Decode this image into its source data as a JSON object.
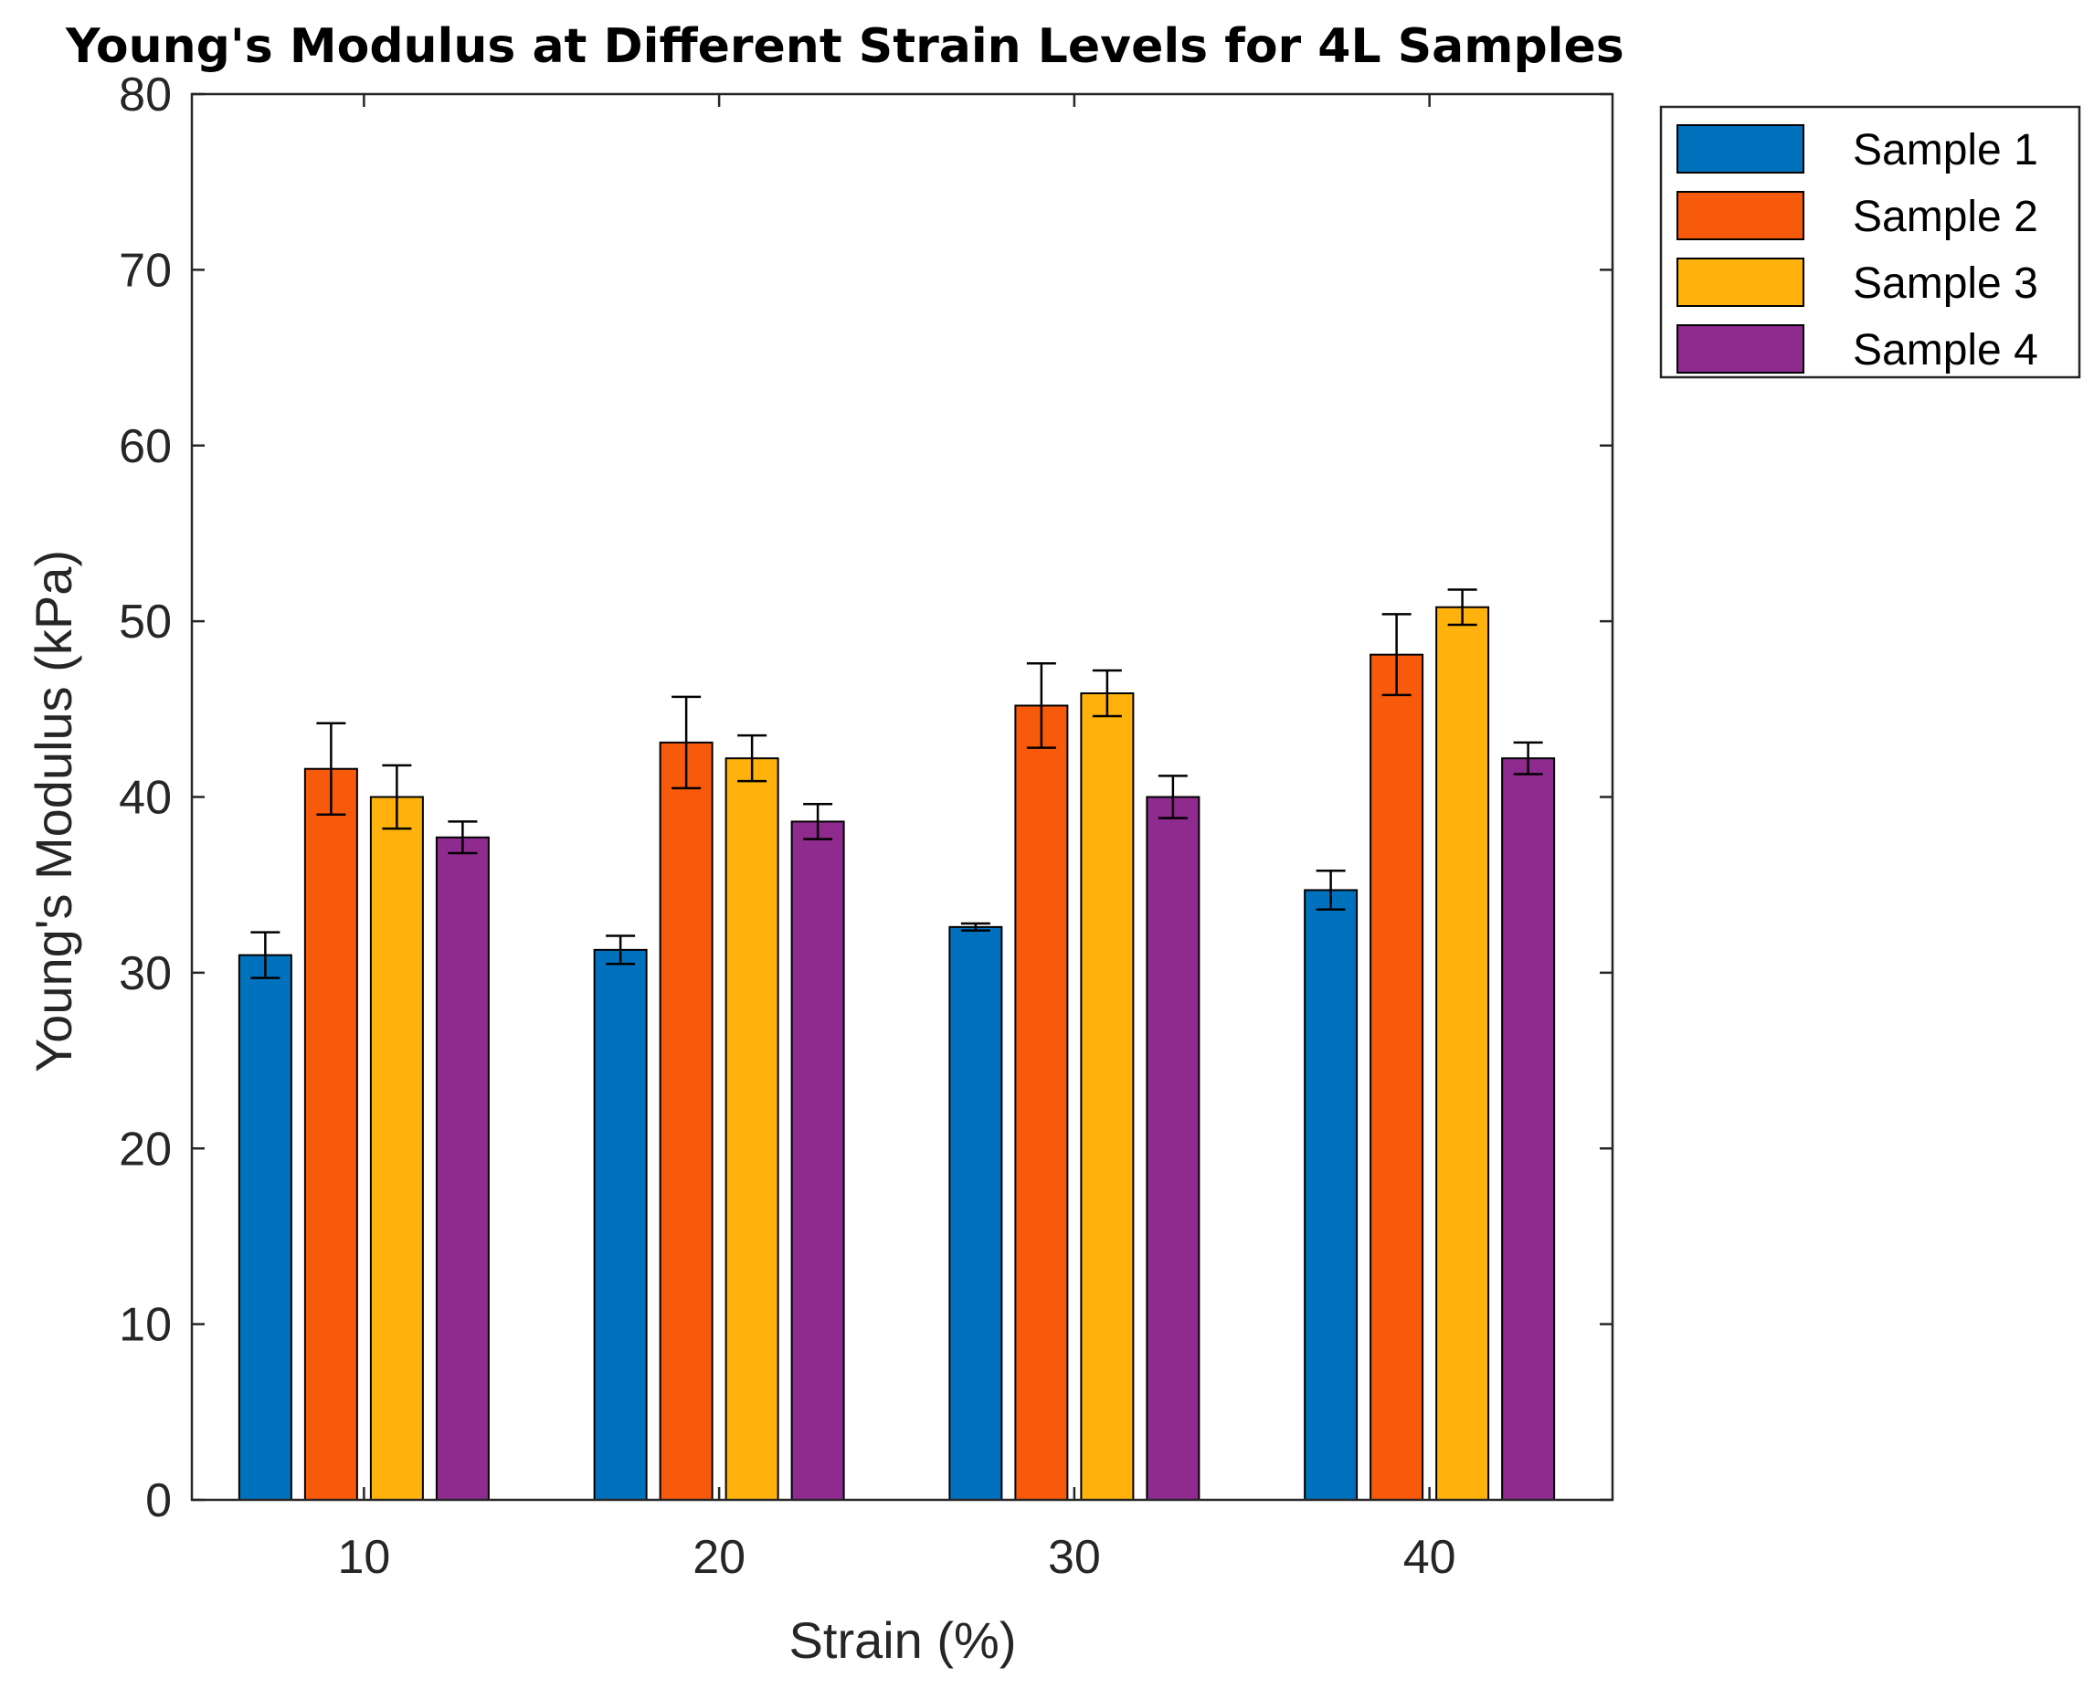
{
  "chart_data": {
    "type": "bar",
    "title": "Young's Modulus at Different Strain Levels for 4L Samples",
    "xlabel": "Strain (%)",
    "ylabel": "Young's Modulus (kPa)",
    "categories": [
      "10",
      "20",
      "30",
      "40"
    ],
    "ylim": [
      0,
      80
    ],
    "yticks": [
      "0",
      "10",
      "20",
      "30",
      "40",
      "50",
      "60",
      "70",
      "80"
    ],
    "grid": false,
    "legend_position": "outside top-right",
    "error_bars": true,
    "series": [
      {
        "name": "Sample 1",
        "color": "#0072BD",
        "values": [
          31.0,
          31.3,
          32.6,
          34.7
        ],
        "errors": [
          1.3,
          0.8,
          0.2,
          1.1
        ]
      },
      {
        "name": "Sample 2",
        "color": "#F85A0B",
        "values": [
          41.6,
          43.1,
          45.2,
          48.1
        ],
        "errors": [
          2.6,
          2.6,
          2.4,
          2.3
        ]
      },
      {
        "name": "Sample 3",
        "color": "#FFB20C",
        "values": [
          40.0,
          42.2,
          45.9,
          50.8
        ],
        "errors": [
          1.8,
          1.3,
          1.3,
          1.0
        ]
      },
      {
        "name": "Sample 4",
        "color": "#8F2A8E",
        "values": [
          37.7,
          38.6,
          40.0,
          42.2
        ],
        "errors": [
          0.9,
          1.0,
          1.2,
          0.9
        ]
      }
    ]
  }
}
